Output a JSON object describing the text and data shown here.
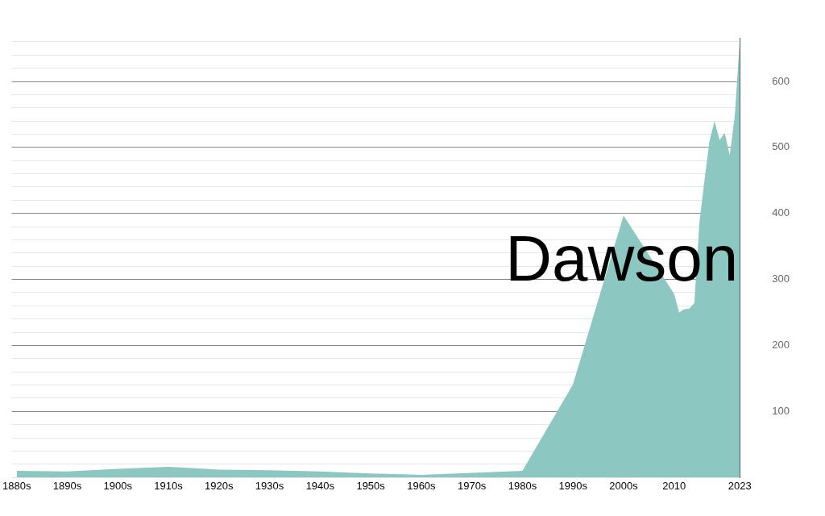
{
  "chart_data": {
    "type": "area",
    "title": "Dawson",
    "x": [
      1880,
      1890,
      1900,
      1910,
      1920,
      1930,
      1940,
      1950,
      1960,
      1970,
      1980,
      1990,
      2000,
      2010,
      2011,
      2012,
      2013,
      2014,
      2015,
      2016,
      2017,
      2018,
      2019,
      2020,
      2021,
      2022,
      2023
    ],
    "series": [
      {
        "color": "#8cc8c1",
        "values": [
          10,
          9,
          13,
          16,
          12,
          11,
          9,
          6,
          4,
          7,
          10,
          141,
          397,
          278,
          250,
          255,
          256,
          264,
          386,
          450,
          510,
          540,
          511,
          522,
          488,
          548,
          665
        ]
      }
    ],
    "xlim": [
      1879,
      2023
    ],
    "xticks": [
      {
        "value": 1880,
        "label": "1880s"
      },
      {
        "value": 1890,
        "label": "1890s"
      },
      {
        "value": 1900,
        "label": "1900s"
      },
      {
        "value": 1910,
        "label": "1910s"
      },
      {
        "value": 1920,
        "label": "1920s"
      },
      {
        "value": 1930,
        "label": "1930s"
      },
      {
        "value": 1940,
        "label": "1940s"
      },
      {
        "value": 1950,
        "label": "1950s"
      },
      {
        "value": 1960,
        "label": "1960s"
      },
      {
        "value": 1970,
        "label": "1970s"
      },
      {
        "value": 1980,
        "label": "1980s"
      },
      {
        "value": 1990,
        "label": "1990s"
      },
      {
        "value": 2000,
        "label": "2000s"
      },
      2010,
      2023
    ],
    "ylim": [
      0,
      665
    ],
    "yticks": [
      {
        "value": 0,
        "label": null
      },
      {
        "value": 20,
        "label": null
      },
      {
        "value": 40,
        "label": null
      },
      {
        "value": 60,
        "label": null
      },
      {
        "value": 80,
        "label": null
      },
      100,
      {
        "value": 120,
        "label": null
      },
      {
        "value": 140,
        "label": null
      },
      {
        "value": 160,
        "label": null
      },
      {
        "value": 180,
        "label": null
      },
      200,
      {
        "value": 220,
        "label": null
      },
      {
        "value": 240,
        "label": null
      },
      {
        "value": 260,
        "label": null
      },
      {
        "value": 280,
        "label": null
      },
      300,
      {
        "value": 320,
        "label": null
      },
      {
        "value": 340,
        "label": null
      },
      {
        "value": 360,
        "label": null
      },
      {
        "value": 380,
        "label": null
      },
      400,
      {
        "value": 420,
        "label": null
      },
      {
        "value": 440,
        "label": null
      },
      {
        "value": 460,
        "label": null
      },
      {
        "value": 480,
        "label": null
      },
      500,
      {
        "value": 520,
        "label": null
      },
      {
        "value": 540,
        "label": null
      },
      {
        "value": 560,
        "label": null
      },
      {
        "value": 580,
        "label": null
      },
      600,
      {
        "value": 620,
        "label": null
      },
      {
        "value": 640,
        "label": null
      },
      {
        "value": 660,
        "label": null
      }
    ],
    "grid": "y",
    "legend": false,
    "marker": "none"
  }
}
